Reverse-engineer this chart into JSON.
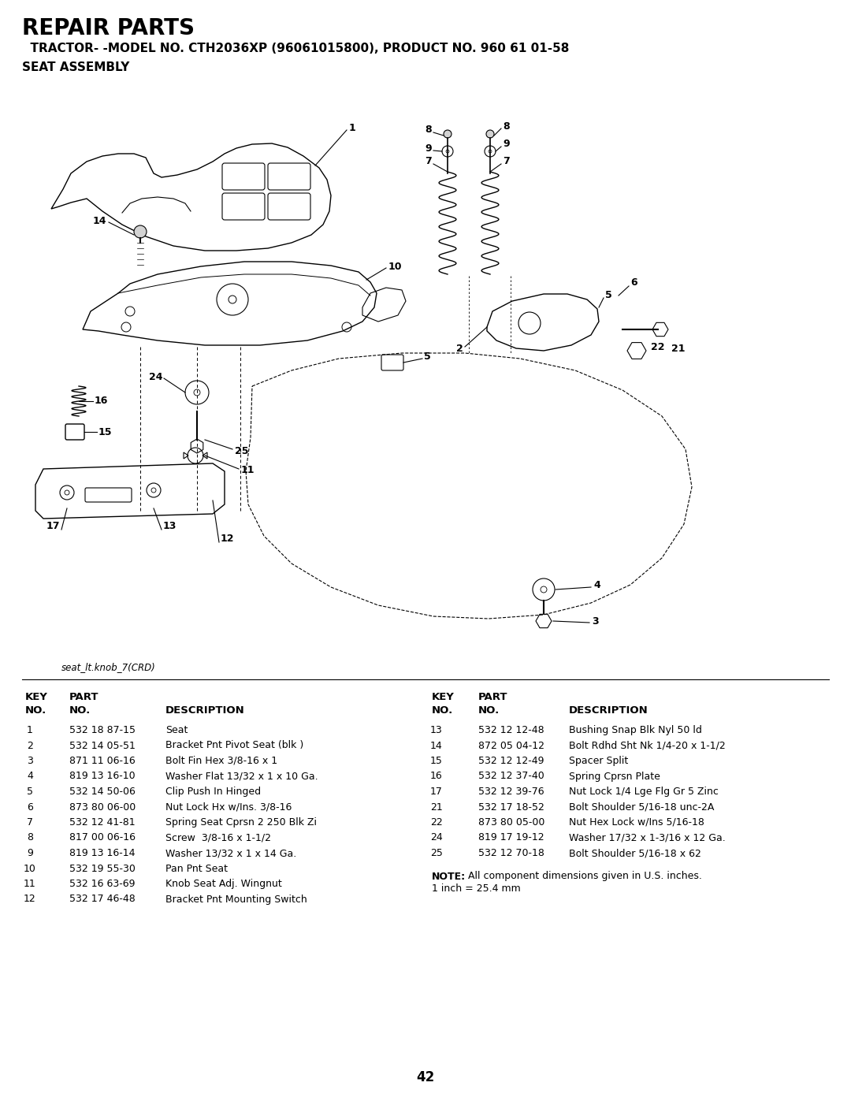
{
  "title_main": "REPAIR PARTS",
  "title_sub": "  TRACTOR- -MODEL NO. CTH2036XP (96061015800), PRODUCT NO. 960 61 01-58",
  "title_sub2": "SEAT ASSEMBLY",
  "image_label": "seat_lt.knob_7(CRD)",
  "page_number": "42",
  "bg_color": "#ffffff",
  "table_left_rows": [
    [
      "1",
      "532 18 87-15",
      "Seat"
    ],
    [
      "2",
      "532 14 05-51",
      "Bracket Pnt Pivot Seat (blk )"
    ],
    [
      "3",
      "871 11 06-16",
      "Bolt Fin Hex 3/8-16 x 1"
    ],
    [
      "4",
      "819 13 16-10",
      "Washer Flat 13/32 x 1 x 10 Ga."
    ],
    [
      "5",
      "532 14 50-06",
      "Clip Push In Hinged"
    ],
    [
      "6",
      "873 80 06-00",
      "Nut Lock Hx w/Ins. 3/8-16"
    ],
    [
      "7",
      "532 12 41-81",
      "Spring Seat Cprsn 2 250 Blk Zi"
    ],
    [
      "8",
      "817 00 06-16",
      "Screw  3/8-16 x 1-1/2"
    ],
    [
      "9",
      "819 13 16-14",
      "Washer 13/32 x 1 x 14 Ga."
    ],
    [
      "10",
      "532 19 55-30",
      "Pan Pnt Seat"
    ],
    [
      "11",
      "532 16 63-69",
      "Knob Seat Adj. Wingnut"
    ],
    [
      "12",
      "532 17 46-48",
      "Bracket Pnt Mounting Switch"
    ]
  ],
  "table_right_rows": [
    [
      "13",
      "532 12 12-48",
      "Bushing Snap Blk Nyl 50 ld"
    ],
    [
      "14",
      "872 05 04-12",
      "Bolt Rdhd Sht Nk 1/4-20 x 1-1/2"
    ],
    [
      "15",
      "532 12 12-49",
      "Spacer Split"
    ],
    [
      "16",
      "532 12 37-40",
      "Spring Cprsn Plate"
    ],
    [
      "17",
      "532 12 39-76",
      "Nut Lock 1/4 Lge Flg Gr 5 Zinc"
    ],
    [
      "21",
      "532 17 18-52",
      "Bolt Shoulder 5/16-18 unc-2A"
    ],
    [
      "22",
      "873 80 05-00",
      "Nut Hex Lock w/Ins 5/16-18"
    ],
    [
      "24",
      "819 17 19-12",
      "Washer 17/32 x 1-3/16 x 12 Ga."
    ],
    [
      "25",
      "532 12 70-18",
      "Bolt Shoulder 5/16-18 x 62"
    ]
  ],
  "note_bold": "NOTE:",
  "note_text": "  All component dimensions given in U.S. inches.",
  "note_line2": "1 inch = 25.4 mm"
}
